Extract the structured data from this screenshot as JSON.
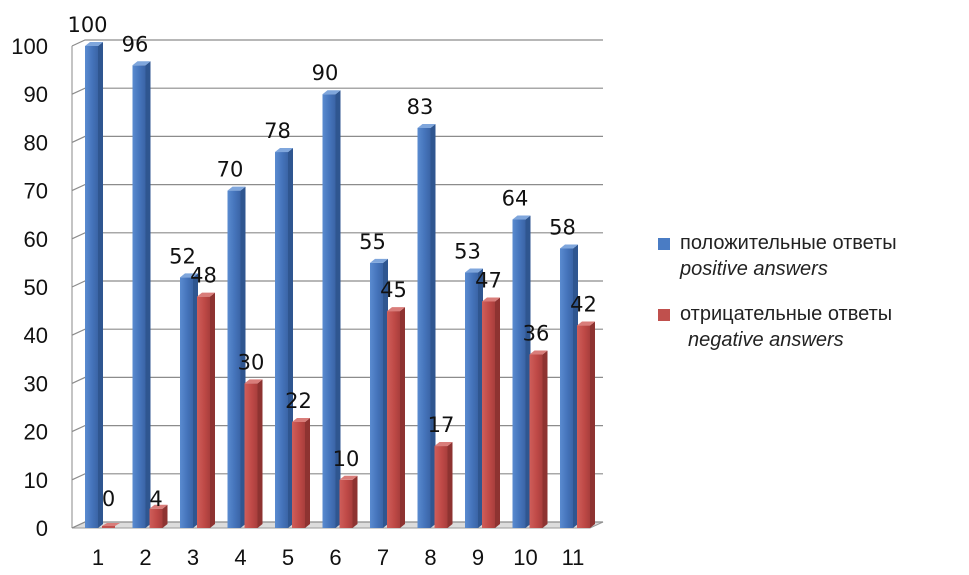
{
  "chart_data": {
    "type": "bar",
    "categories": [
      "1",
      "2",
      "3",
      "4",
      "5",
      "6",
      "7",
      "8",
      "9",
      "10",
      "11"
    ],
    "series": [
      {
        "name": "положительные ответы",
        "name_en": "positive answers",
        "color": "#4a7cc4",
        "values": [
          100,
          96,
          52,
          70,
          78,
          90,
          55,
          83,
          53,
          64,
          58
        ]
      },
      {
        "name": "отрицательные ответы",
        "name_en": "negative answers",
        "color": "#c0504d",
        "values": [
          0,
          4,
          48,
          30,
          22,
          10,
          45,
          17,
          47,
          36,
          42
        ]
      }
    ],
    "ylim": [
      0,
      100
    ],
    "yticks": [
      0,
      10,
      20,
      30,
      40,
      50,
      60,
      70,
      80,
      90,
      100
    ],
    "grid": true,
    "legend_position": "right",
    "style": "3d-columns"
  }
}
